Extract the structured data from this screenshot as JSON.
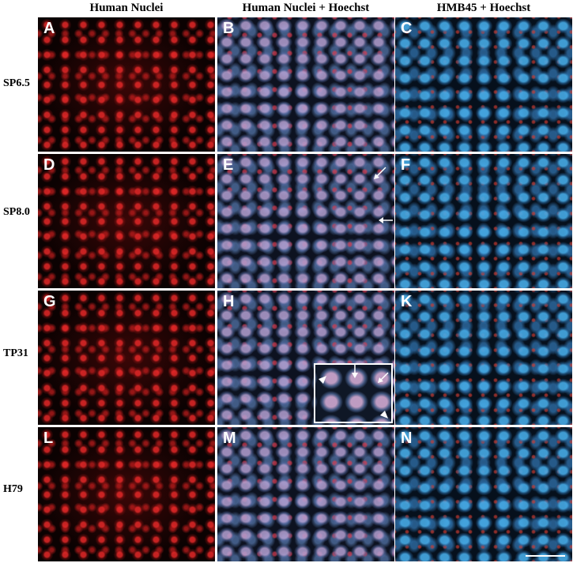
{
  "columns": [
    "Human Nuclei",
    "Human Nuclei + Hoechst",
    "HMB45 + Hoechst"
  ],
  "rows": [
    {
      "label": "SP6.5",
      "panels": [
        "A",
        "B",
        "C"
      ]
    },
    {
      "label": "SP8.0",
      "panels": [
        "D",
        "E",
        "F"
      ]
    },
    {
      "label": "TP31",
      "panels": [
        "G",
        "H",
        "K"
      ]
    },
    {
      "label": "H79",
      "panels": [
        "L",
        "M",
        "N"
      ]
    }
  ]
}
